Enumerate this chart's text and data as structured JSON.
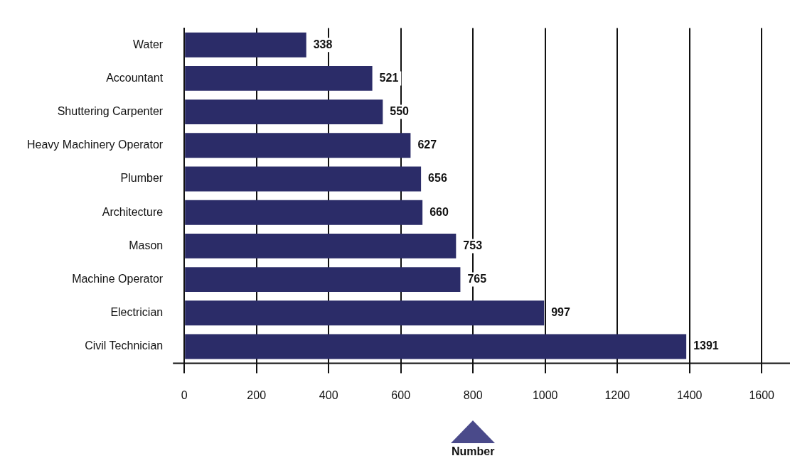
{
  "chart_data": {
    "type": "bar",
    "orientation": "horizontal",
    "xlabel": "Number",
    "categories": [
      "Water",
      "Accountant",
      "Shuttering Carpenter",
      "Heavy Machinery Operator",
      "Plumber",
      "Architecture",
      "Mason",
      "Machine Operator",
      "Electrician",
      "Civil Technician"
    ],
    "values": [
      338,
      521,
      550,
      627,
      656,
      660,
      753,
      765,
      997,
      1391
    ],
    "color": "#2b2c68",
    "data_labels": true,
    "grid": "x",
    "legend": false,
    "xlim": [
      0,
      1600
    ],
    "xticks": [
      0,
      200,
      400,
      600,
      800,
      1000,
      1200,
      1400,
      1600
    ]
  }
}
